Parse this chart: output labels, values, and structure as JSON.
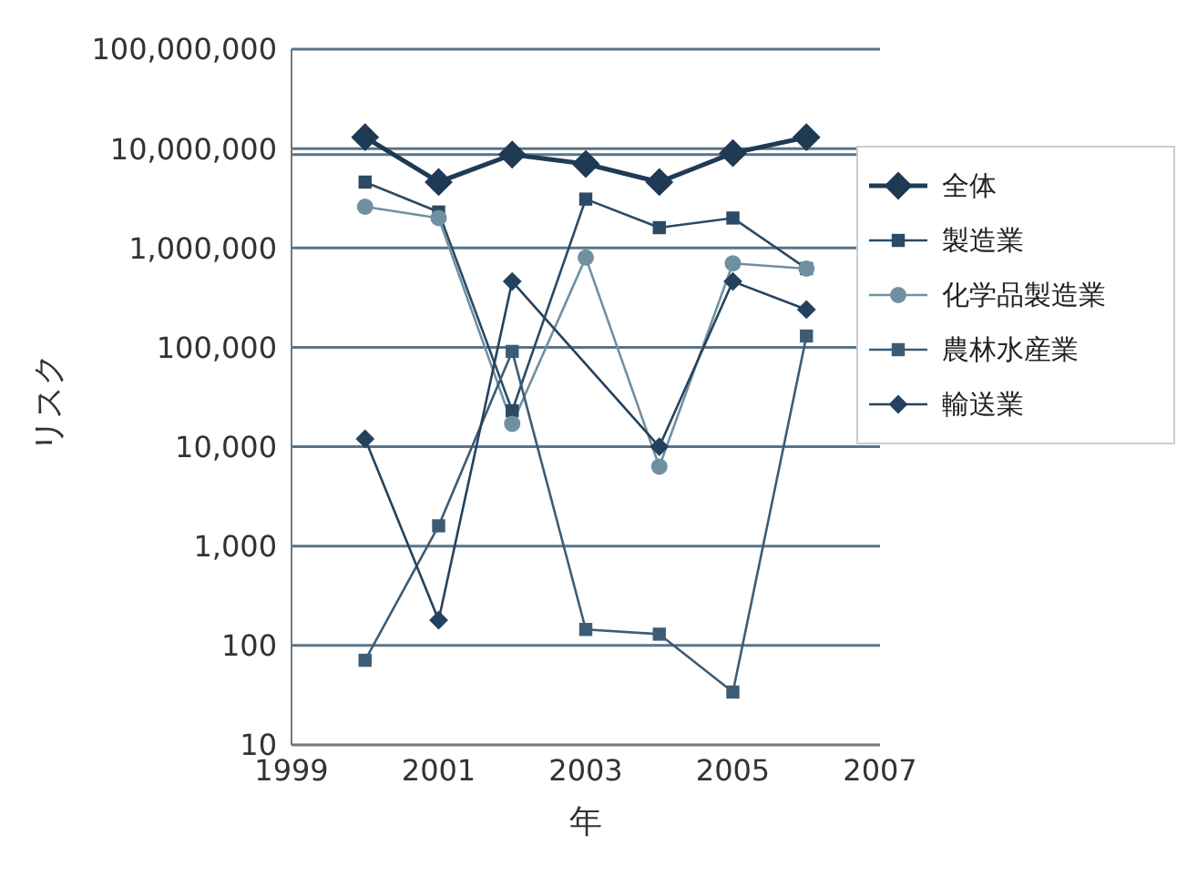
{
  "chart_data": {
    "type": "line",
    "xlabel": "年",
    "ylabel": "リスク",
    "log": "y",
    "grid": "y",
    "legend": "right",
    "x": [
      2000,
      2001,
      2002,
      2003,
      2004,
      2005,
      2006
    ],
    "xlim": [
      1999,
      2007
    ],
    "xticks": [
      1999,
      2001,
      2003,
      2005,
      2007
    ],
    "ylim": [
      10,
      100000000
    ],
    "yticks": [
      10,
      100,
      {
        "value": 1000,
        "label": "1,000"
      },
      {
        "value": 10000,
        "label": "10,000"
      },
      {
        "value": 100000,
        "label": "100,000"
      },
      {
        "value": 1000000,
        "label": "1,000,000"
      },
      {
        "value": 10000000,
        "label": "10,000,000"
      },
      {
        "value": 100000000,
        "label": "100,000,000"
      }
    ],
    "ref_lines": [
      {
        "axis": "y",
        "value": 8700000,
        "color": "#5a7488"
      }
    ],
    "series": [
      {
        "name": "全体",
        "color": "#1f3a55",
        "marker": "diamond",
        "values": [
          13000000,
          4600000,
          8700000,
          7000000,
          4600000,
          9000000,
          13000000
        ]
      },
      {
        "name": "製造業",
        "color": "#2a4a66",
        "marker": "square",
        "values": [
          4600000,
          2300000,
          23000,
          3100000,
          1600000,
          2000000,
          620000
        ]
      },
      {
        "name": "化学品製造業",
        "color": "#7090a2",
        "marker": "circle",
        "values": [
          2600000,
          2000000,
          17000,
          800000,
          6300,
          700000,
          620000
        ]
      },
      {
        "name": "農林水産業",
        "color": "#3c5c76",
        "marker": "square",
        "values": [
          71,
          1600,
          91000,
          145,
          130,
          34,
          130000
        ]
      },
      {
        "name": "輸送業",
        "color": "#24425e",
        "marker": "diamond",
        "values": [
          12000,
          180,
          460000,
          null,
          10000,
          460000,
          240000
        ]
      }
    ]
  }
}
